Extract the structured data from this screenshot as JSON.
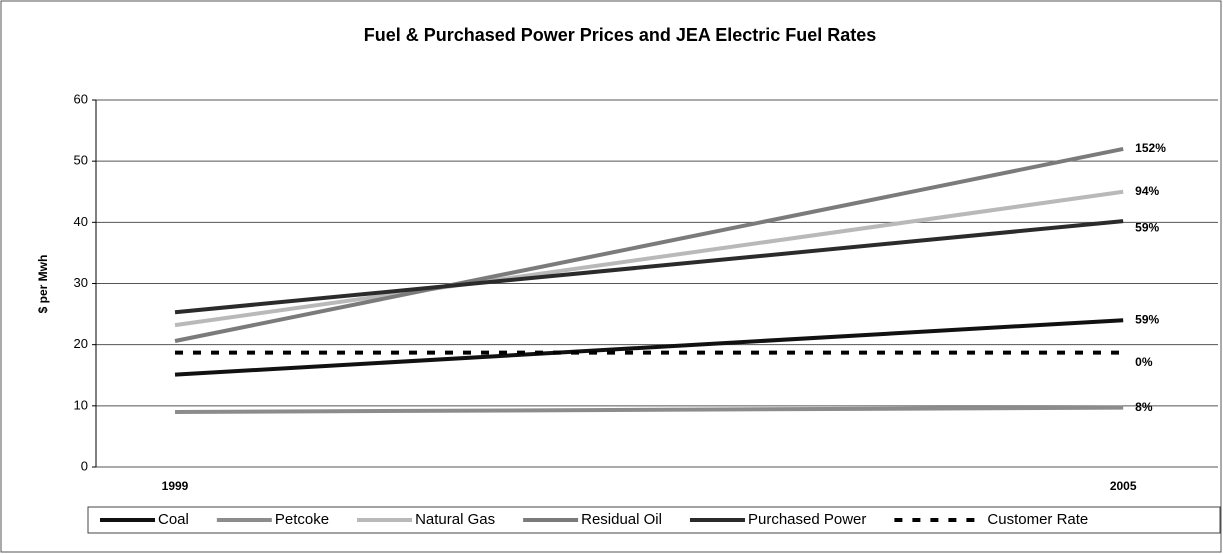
{
  "chart_data": {
    "type": "line",
    "title": "Fuel & Purchased Power Prices and JEA Electric Fuel Rates",
    "y_label": "$ per Mwh",
    "x": [
      1999,
      2005
    ],
    "xlim": [
      1998.5,
      2005.6
    ],
    "xticks": [
      1999,
      2005
    ],
    "ylim": [
      0,
      60
    ],
    "yticks": [
      0,
      10,
      20,
      30,
      40,
      50,
      60
    ],
    "grid": true,
    "legend": "bottom",
    "series": [
      {
        "name": "Coal",
        "color": "#111111",
        "values": [
          15.1,
          24
        ],
        "change_label": "59%"
      },
      {
        "name": "Petcoke",
        "color": "#8c8c8c",
        "values": [
          9,
          9.7
        ],
        "change_label": "8%"
      },
      {
        "name": "Natural Gas",
        "color": "#b9b9b9",
        "values": [
          23.2,
          45
        ],
        "change_label": "94%"
      },
      {
        "name": "Residual Oil",
        "color": "#7b7b7b",
        "values": [
          20.6,
          52
        ],
        "change_label": "152%"
      },
      {
        "name": "Purchased Power",
        "color": "#2b2b2b",
        "values": [
          25.3,
          40.2
        ],
        "change_label": "59%"
      },
      {
        "name": "Customer Rate",
        "color": "#000000",
        "values": [
          18.7,
          18.7
        ],
        "change_label": "0%",
        "dashed": true
      }
    ]
  }
}
